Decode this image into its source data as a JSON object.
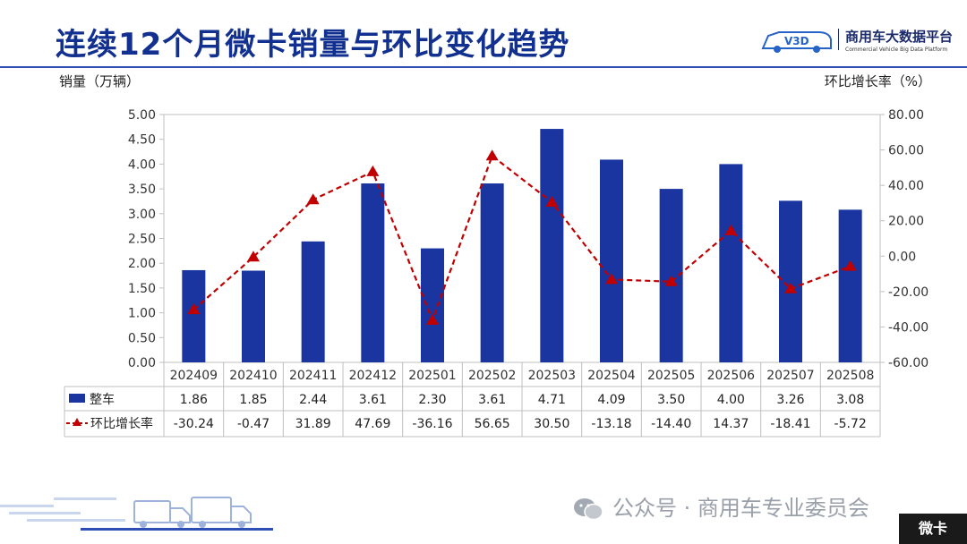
{
  "header": {
    "title": "连续12个月微卡销量与环比变化趋势",
    "logo_text": "商用车大数据平台",
    "logo_mark": "V3D",
    "logo_sub": "Commercial Vehicle Big Data Platform"
  },
  "footer": {
    "wechat_label": "公众号 · 商用车专业委员会",
    "corner_tag": "微卡"
  },
  "chart_data": {
    "type": "bar",
    "categories": [
      "202409",
      "202410",
      "202411",
      "202412",
      "202501",
      "202502",
      "202503",
      "202504",
      "202505",
      "202506",
      "202507",
      "202508"
    ],
    "left_axis": {
      "label": "销量（万辆）",
      "ylim": [
        0,
        5
      ],
      "ticks": [
        "0.00",
        "0.50",
        "1.00",
        "1.50",
        "2.00",
        "2.50",
        "3.00",
        "3.50",
        "4.00",
        "4.50",
        "5.00"
      ]
    },
    "right_axis": {
      "label": "环比增长率（%）",
      "ylim": [
        -60,
        80
      ],
      "ticks": [
        "-60.00",
        "-40.00",
        "-20.00",
        "0.00",
        "20.00",
        "40.00",
        "60.00",
        "80.00"
      ]
    },
    "series": [
      {
        "name": "整车",
        "type": "bar",
        "axis": "left",
        "color": "#1a35a0",
        "values": [
          1.86,
          1.85,
          2.44,
          3.61,
          2.3,
          3.61,
          4.71,
          4.09,
          3.5,
          4.0,
          3.26,
          3.08
        ],
        "labels": [
          "1.86",
          "1.85",
          "2.44",
          "3.61",
          "2.30",
          "3.61",
          "4.71",
          "4.09",
          "3.50",
          "4.00",
          "3.26",
          "3.08"
        ]
      },
      {
        "name": "环比增长率",
        "type": "line",
        "axis": "right",
        "color": "#c00000",
        "line_style": "dashed",
        "marker": "triangle",
        "values": [
          -30.24,
          -0.47,
          31.89,
          47.69,
          -36.16,
          56.65,
          30.5,
          -13.18,
          -14.4,
          14.37,
          -18.41,
          -5.72
        ],
        "labels": [
          "-30.24",
          "-0.47",
          "31.89",
          "47.69",
          "-36.16",
          "56.65",
          "30.50",
          "-13.18",
          "-14.40",
          "14.37",
          "-18.41",
          "-5.72"
        ]
      }
    ],
    "grid": false,
    "legend": "data table below chart"
  }
}
